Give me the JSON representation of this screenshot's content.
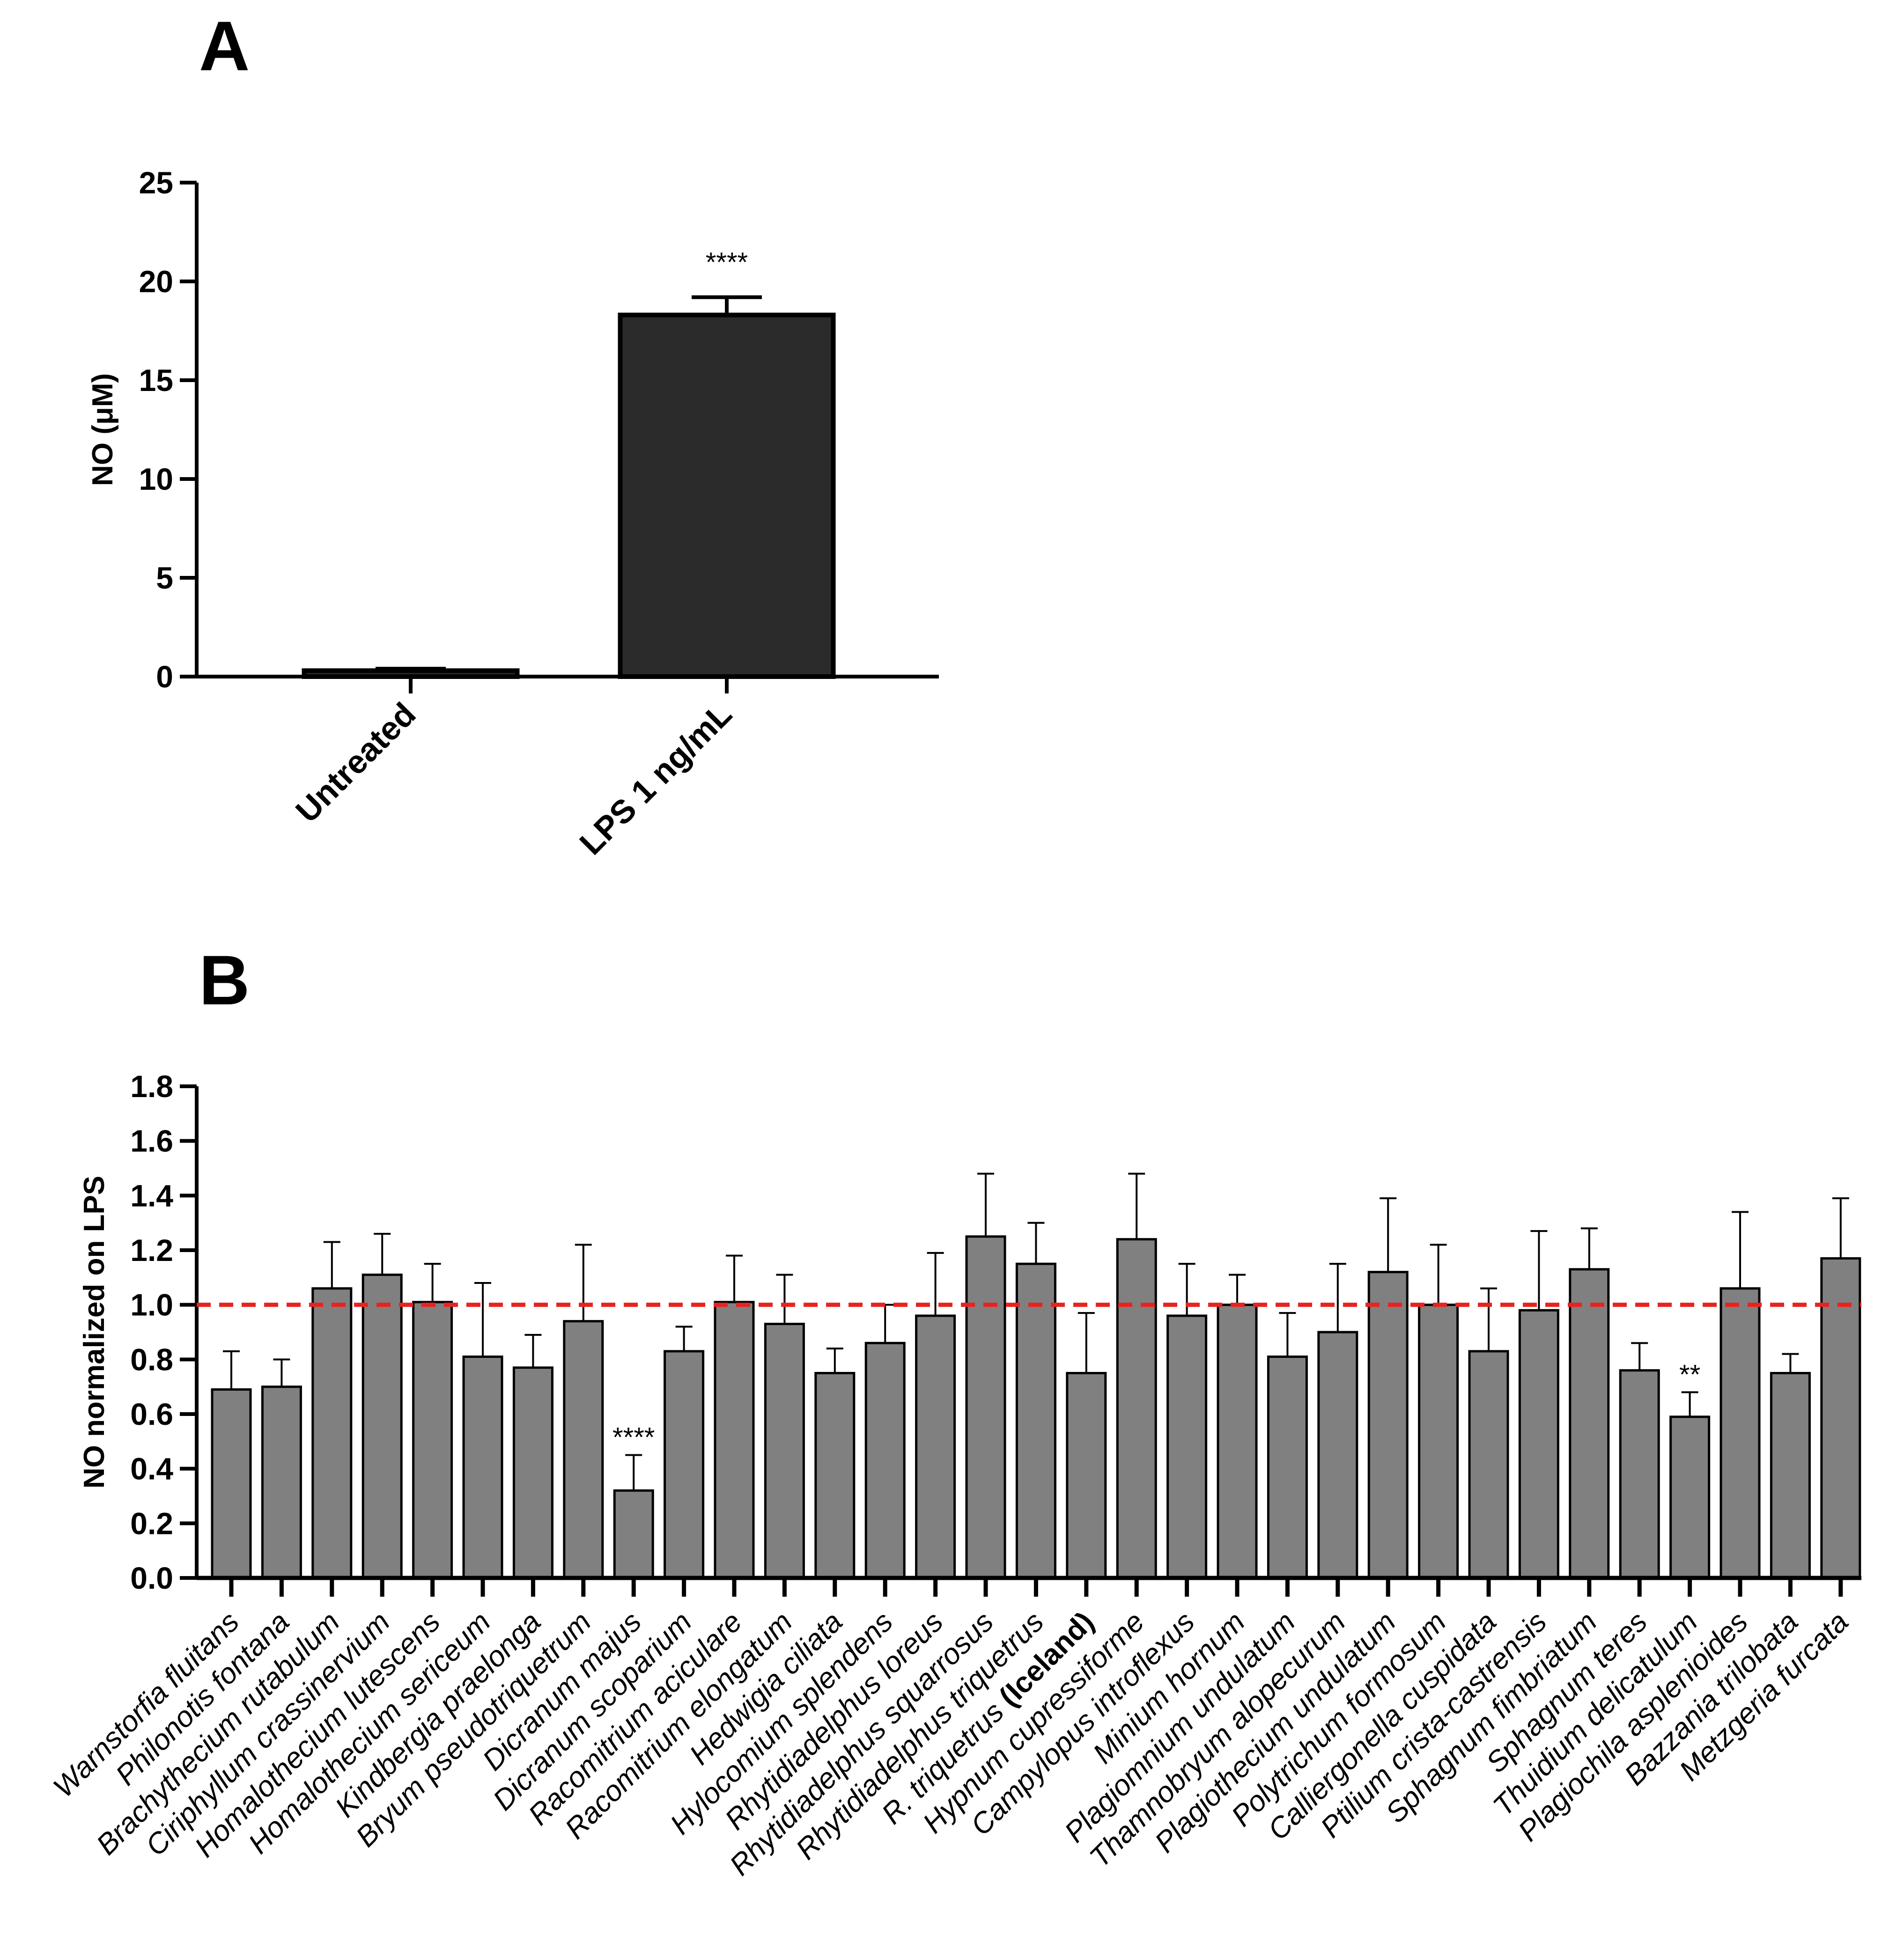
{
  "panels": {
    "a": {
      "letter": "A"
    },
    "b": {
      "letter": "B"
    }
  },
  "chart_data": [
    {
      "id": "panel-a",
      "type": "bar",
      "title": "",
      "ylabel": "NO (μM)",
      "xlabel": "",
      "ylim": [
        0,
        25
      ],
      "yticks": [
        0,
        5,
        10,
        15,
        20,
        25
      ],
      "ytick_labels": [
        "0",
        "5",
        "10",
        "15",
        "20",
        "25"
      ],
      "categories": [
        "Untreated",
        "LPS 1 ng/mL"
      ],
      "values": [
        0.3,
        18.3
      ],
      "errors": [
        0.1,
        0.9
      ],
      "significance": [
        "",
        "****"
      ],
      "colors": {
        "bar": "#2b2b2b",
        "edge": "#000000"
      }
    },
    {
      "id": "panel-b",
      "type": "bar",
      "title": "",
      "ylabel": "NO normalized on LPS",
      "xlabel": "",
      "ylim": [
        0,
        1.8
      ],
      "yticks": [
        0,
        0.2,
        0.4,
        0.6,
        0.8,
        1.0,
        1.2,
        1.4,
        1.6,
        1.8
      ],
      "ytick_labels": [
        "0.0",
        "0.2",
        "0.4",
        "0.6",
        "0.8",
        "1.0",
        "1.2",
        "1.4",
        "1.6",
        "1.8"
      ],
      "reference_line": {
        "y": 1.0,
        "color": "#e8231f",
        "style": "dashed"
      },
      "categories": [
        {
          "name": "Warnstorfia fluitans",
          "suffix": ""
        },
        {
          "name": "Philonotis fontana",
          "suffix": ""
        },
        {
          "name": "Brachythecium rutabulum",
          "suffix": ""
        },
        {
          "name": "Ciriphyllum crassinervium",
          "suffix": ""
        },
        {
          "name": "Homalothecium lutescens",
          "suffix": ""
        },
        {
          "name": "Homalothecium sericeum",
          "suffix": ""
        },
        {
          "name": "Kindbergia praelonga",
          "suffix": ""
        },
        {
          "name": "Bryum pseudotriquetrum",
          "suffix": ""
        },
        {
          "name": "Dicranum majus",
          "suffix": ""
        },
        {
          "name": "Dicranum scoparium",
          "suffix": ""
        },
        {
          "name": "Racomitrium aciculare",
          "suffix": ""
        },
        {
          "name": "Racomitrium elongatum",
          "suffix": ""
        },
        {
          "name": "Hedwigia ciliata",
          "suffix": ""
        },
        {
          "name": "Hylocomium splendens",
          "suffix": ""
        },
        {
          "name": "Rhytidiadelphus loreus",
          "suffix": ""
        },
        {
          "name": "Rhytidiadelphus squarrosus",
          "suffix": ""
        },
        {
          "name": "Rhytidiadelphus triquetrus",
          "suffix": ""
        },
        {
          "name": "R. triquetrus",
          "suffix": "(Iceland)"
        },
        {
          "name": "Hypnum cupressiforme",
          "suffix": ""
        },
        {
          "name": "Campylopus introflexus",
          "suffix": ""
        },
        {
          "name": "Minium hornum",
          "suffix": ""
        },
        {
          "name": "Plagiomnium undulatum",
          "suffix": ""
        },
        {
          "name": "Thamnobryum alopecurum",
          "suffix": ""
        },
        {
          "name": "Plagiothecium undulatum",
          "suffix": ""
        },
        {
          "name": "Polytrichum formosum",
          "suffix": ""
        },
        {
          "name": "Calliergonella cuspidata",
          "suffix": ""
        },
        {
          "name": "Ptilium crista-castrensis",
          "suffix": ""
        },
        {
          "name": "Sphagnum fimbriatum",
          "suffix": ""
        },
        {
          "name": "Sphagnum teres",
          "suffix": ""
        },
        {
          "name": "Thuidium delicatulum",
          "suffix": ""
        },
        {
          "name": "Plagiochila asplenioides",
          "suffix": ""
        },
        {
          "name": "Bazzania trilobata",
          "suffix": ""
        },
        {
          "name": "Metzgeria furcata",
          "suffix": ""
        }
      ],
      "values": [
        0.69,
        0.7,
        1.06,
        1.11,
        1.01,
        0.81,
        0.77,
        0.94,
        0.32,
        0.83,
        1.01,
        0.93,
        0.75,
        0.86,
        0.96,
        1.25,
        1.15,
        0.75,
        1.24,
        0.96,
        1.0,
        0.81,
        0.9,
        1.12,
        1.0,
        0.83,
        0.98,
        1.13,
        0.76,
        0.59,
        1.06,
        0.75,
        1.17
      ],
      "errors": [
        0.14,
        0.1,
        0.17,
        0.15,
        0.14,
        0.27,
        0.12,
        0.28,
        0.13,
        0.09,
        0.17,
        0.18,
        0.09,
        0.14,
        0.23,
        0.23,
        0.15,
        0.22,
        0.24,
        0.19,
        0.11,
        0.16,
        0.25,
        0.27,
        0.22,
        0.23,
        0.29,
        0.15,
        0.1,
        0.09,
        0.28,
        0.07,
        0.22
      ],
      "significance": [
        "",
        "",
        "",
        "",
        "",
        "",
        "",
        "",
        "****",
        "",
        "",
        "",
        "",
        "",
        "",
        "",
        "",
        "",
        "",
        "",
        "",
        "",
        "",
        "",
        "",
        "",
        "",
        "",
        "",
        "**",
        "",
        "",
        ""
      ],
      "colors": {
        "bar": "#808080",
        "edge": "#000000"
      }
    }
  ]
}
